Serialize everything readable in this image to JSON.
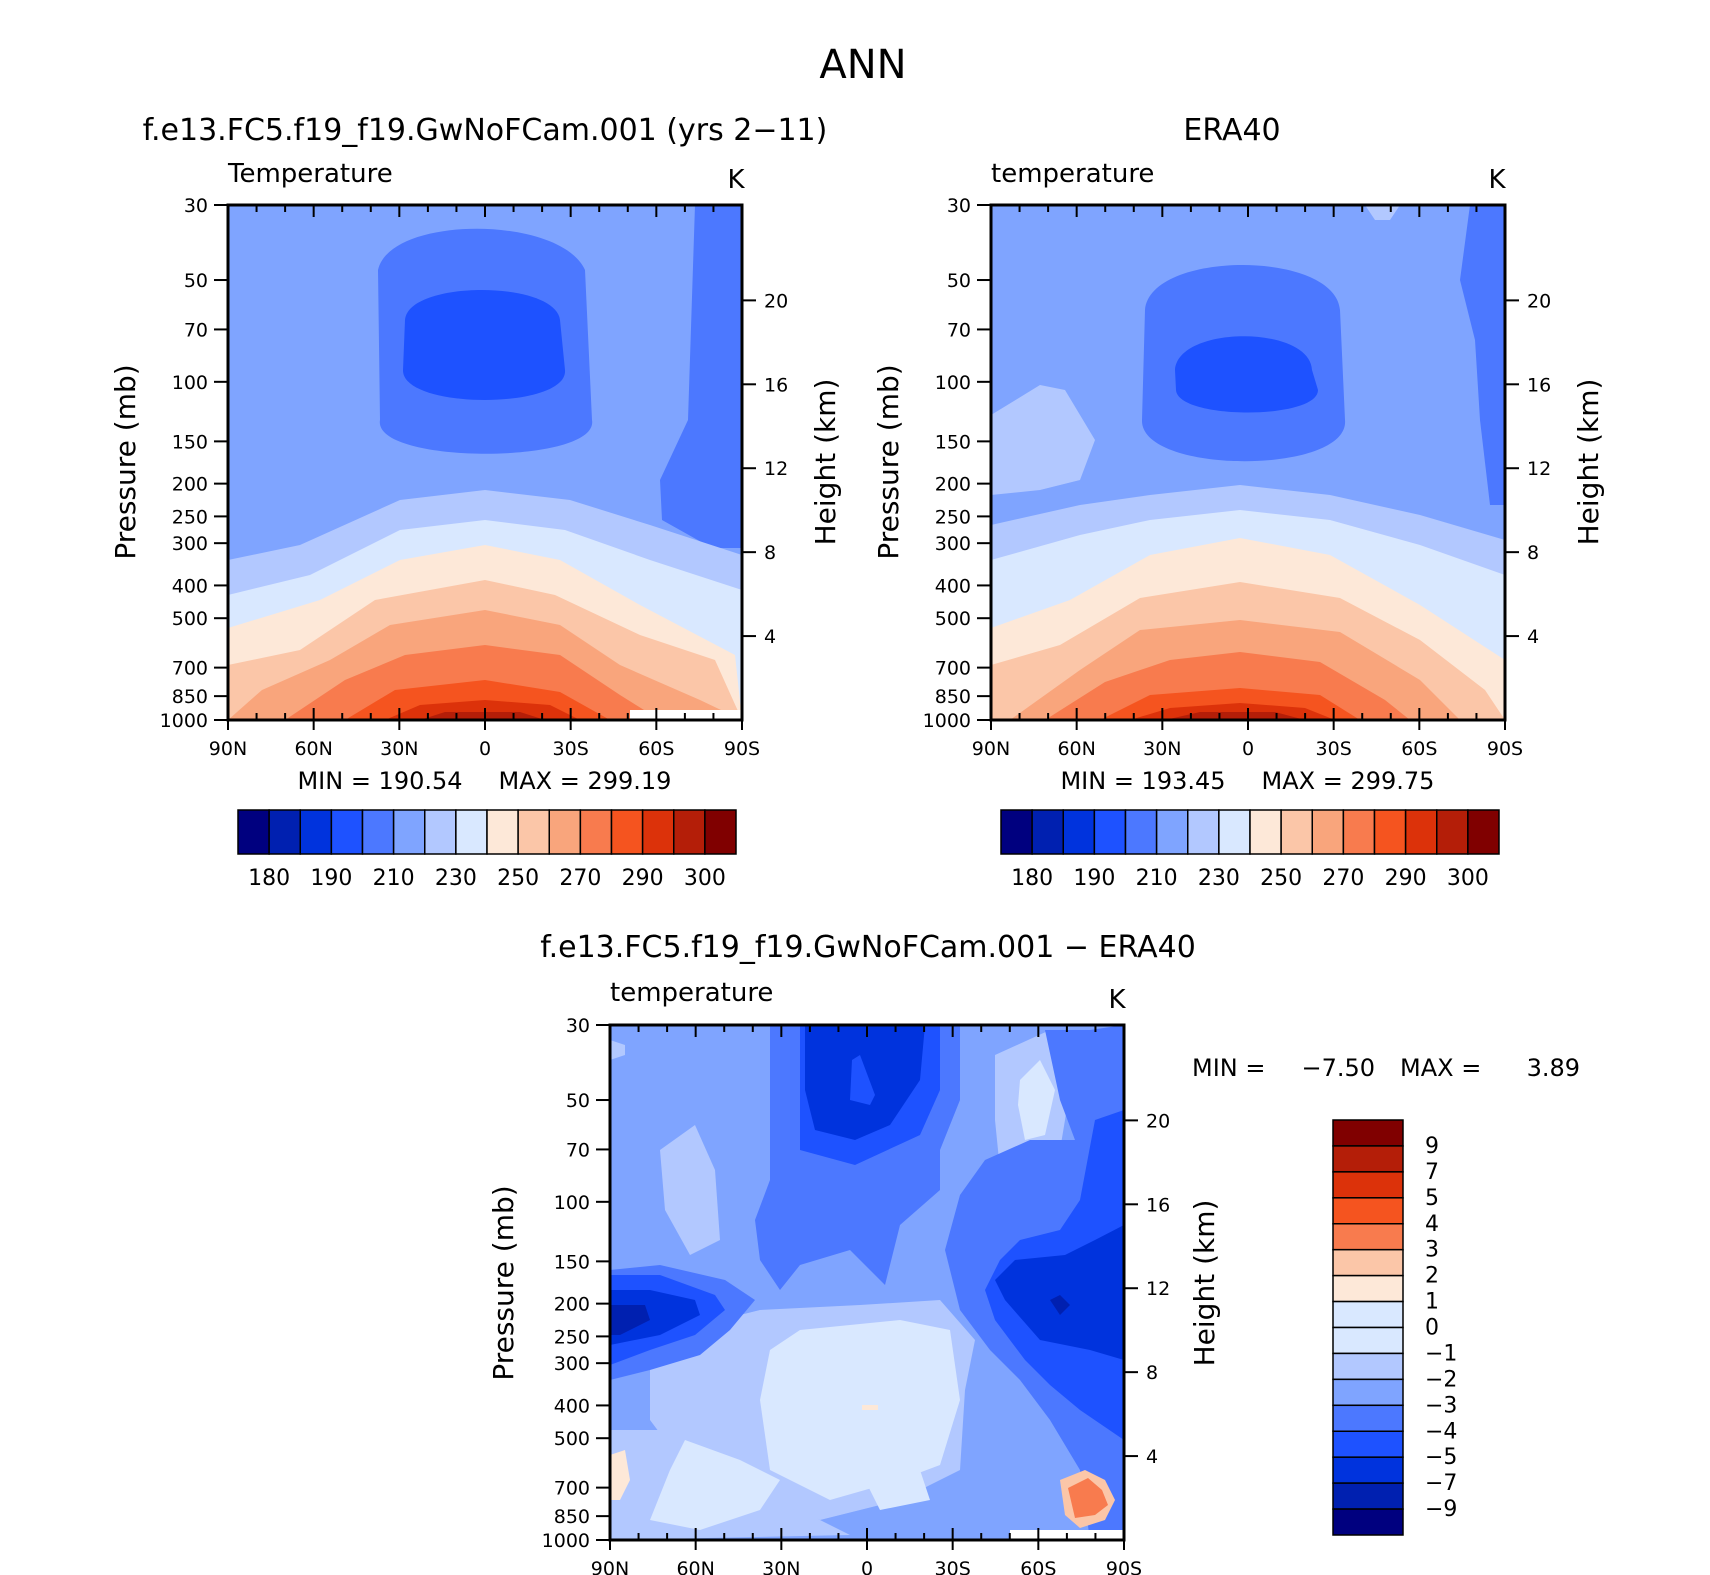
{
  "figure": {
    "title": "ANN",
    "colors": {
      "temperature_levels": [
        "#00007f",
        "#0020b0",
        "#0033dd",
        "#1e52ff",
        "#4c78ff",
        "#7fa4ff",
        "#b2c8ff",
        "#d9e8ff",
        "#fde8d8",
        "#fbc6a8",
        "#f9a57c",
        "#f87b4e",
        "#f5541f",
        "#dc320a",
        "#b41e08",
        "#800000"
      ],
      "difference_levels": [
        "#00007f",
        "#0020b0",
        "#0033dd",
        "#1e52ff",
        "#4c78ff",
        "#7fa4ff",
        "#b2c8ff",
        "#d9e8ff",
        "#fde8d8",
        "#fbc6a8",
        "#f87b4e",
        "#f5541f",
        "#dc320a",
        "#b41e08",
        "#800000"
      ]
    }
  },
  "chart_data": [
    {
      "id": "model",
      "type": "contour",
      "title": "f.e13.FC5.f19_f19.GwNoFCam.001 (yrs 2−11)",
      "subtitle_left": "Temperature",
      "units": "K",
      "ylabel": "Pressure (mb)",
      "ylabel_right": "Height (km)",
      "yticks": [
        "30",
        "50",
        "70",
        "100",
        "150",
        "200",
        "250",
        "300",
        "400",
        "500",
        "700",
        "850",
        "1000"
      ],
      "yticks_right": [
        "20",
        "16",
        "12",
        "8",
        "4"
      ],
      "xticks": [
        "90N",
        "60N",
        "30N",
        "0",
        "30S",
        "60S",
        "90S"
      ],
      "min_label": "MIN = 190.54",
      "max_label": "MAX = 299.19",
      "min": 190.54,
      "max": 299.19,
      "colorbar_labels": [
        "180",
        "190",
        "210",
        "230",
        "250",
        "270",
        "290",
        "300"
      ],
      "colorbar_levels": [
        180,
        185,
        190,
        200,
        210,
        220,
        230,
        240,
        250,
        260,
        270,
        280,
        290,
        295,
        300
      ]
    },
    {
      "id": "obs",
      "type": "contour",
      "title": "ERA40",
      "subtitle_left": "temperature",
      "units": "K",
      "ylabel": "Pressure (mb)",
      "ylabel_right": "Height (km)",
      "yticks": [
        "30",
        "50",
        "70",
        "100",
        "150",
        "200",
        "250",
        "300",
        "400",
        "500",
        "700",
        "850",
        "1000"
      ],
      "yticks_right": [
        "20",
        "16",
        "12",
        "8",
        "4"
      ],
      "xticks": [
        "90N",
        "60N",
        "30N",
        "0",
        "30S",
        "60S",
        "90S"
      ],
      "min_label": "MIN = 193.45",
      "max_label": "MAX = 299.75",
      "min": 193.45,
      "max": 299.75,
      "colorbar_labels": [
        "180",
        "190",
        "210",
        "230",
        "250",
        "270",
        "290",
        "300"
      ],
      "colorbar_levels": [
        180,
        185,
        190,
        200,
        210,
        220,
        230,
        240,
        250,
        260,
        270,
        280,
        290,
        295,
        300
      ]
    },
    {
      "id": "diff",
      "type": "contour",
      "title": "f.e13.FC5.f19_f19.GwNoFCam.001 − ERA40",
      "subtitle_left": "temperature",
      "units": "K",
      "ylabel": "Pressure (mb)",
      "ylabel_right": "Height (km)",
      "yticks": [
        "30",
        "50",
        "70",
        "100",
        "150",
        "200",
        "250",
        "300",
        "400",
        "500",
        "700",
        "850",
        "1000"
      ],
      "yticks_right": [
        "20",
        "16",
        "12",
        "8",
        "4"
      ],
      "xticks": [
        "90N",
        "60N",
        "30N",
        "0",
        "30S",
        "60S",
        "90S"
      ],
      "min_label": "MIN =",
      "min_value": "−7.50",
      "max_label": "MAX =",
      "max_value": "3.89",
      "min": -7.5,
      "max": 3.89,
      "colorbar_labels": [
        "9",
        "7",
        "5",
        "4",
        "3",
        "2",
        "1",
        "0",
        "−1",
        "−2",
        "−3",
        "−4",
        "−5",
        "−7",
        "−9"
      ],
      "colorbar_levels": [
        -9,
        -7,
        -5,
        -4,
        -3,
        -2,
        -1,
        0,
        1,
        2,
        3,
        4,
        5,
        7,
        9
      ]
    }
  ]
}
